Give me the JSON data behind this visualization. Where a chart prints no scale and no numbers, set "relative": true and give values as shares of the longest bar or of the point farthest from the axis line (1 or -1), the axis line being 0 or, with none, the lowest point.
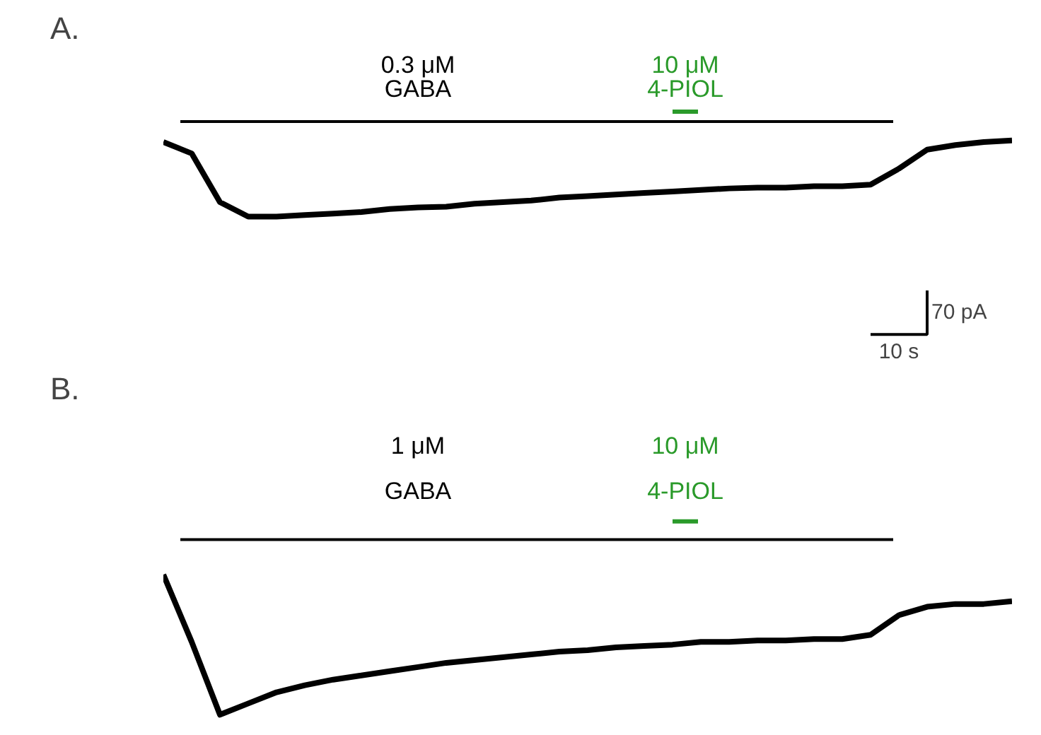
{
  "chart_data": [
    {
      "type": "line",
      "title": "A.",
      "relative": true,
      "categories": [
        null,
        null,
        null,
        null,
        null,
        null,
        null,
        null,
        null,
        null,
        null,
        null,
        null,
        null,
        null,
        null,
        null,
        null,
        null,
        null,
        null,
        null,
        null,
        null,
        null,
        null,
        null,
        null,
        null,
        null,
        null
      ],
      "series": [
        {
          "color": "#000000",
          "values": [
            0.98,
            0.83,
            0.19,
            0,
            0,
            0.02,
            0.04,
            0.06,
            0.1,
            0.12,
            0.13,
            0.17,
            0.19,
            0.21,
            0.25,
            0.27,
            0.29,
            0.31,
            0.33,
            0.35,
            0.37,
            0.38,
            0.38,
            0.4,
            0.4,
            0.42,
            0.63,
            0.88,
            0.94,
            0.98,
            1
          ]
        }
      ],
      "annotations": [
        "0.3 μM\nGABA",
        "10 μM\n4-PIOL",
        "70 pA",
        "10 s"
      ]
    },
    {
      "type": "line",
      "title": "B.",
      "relative": true,
      "categories": [
        null,
        null,
        null,
        null,
        null,
        null,
        null,
        null,
        null,
        null,
        null,
        null,
        null,
        null,
        null,
        null,
        null,
        null,
        null,
        null,
        null,
        null,
        null,
        null,
        null,
        null,
        null,
        null,
        null,
        null,
        null
      ],
      "series": [
        {
          "color": "#000000",
          "values": [
            1,
            0.52,
            0,
            0.08,
            0.16,
            0.21,
            0.25,
            0.28,
            0.31,
            0.34,
            0.37,
            0.39,
            0.41,
            0.43,
            0.45,
            0.46,
            0.48,
            0.49,
            0.5,
            0.52,
            0.52,
            0.53,
            0.53,
            0.54,
            0.54,
            0.57,
            0.71,
            0.77,
            0.79,
            0.79,
            0.81
          ]
        }
      ],
      "annotations": [
        "1 μM\nGABA",
        "10 μM\n4-PIOL"
      ]
    }
  ]
}
